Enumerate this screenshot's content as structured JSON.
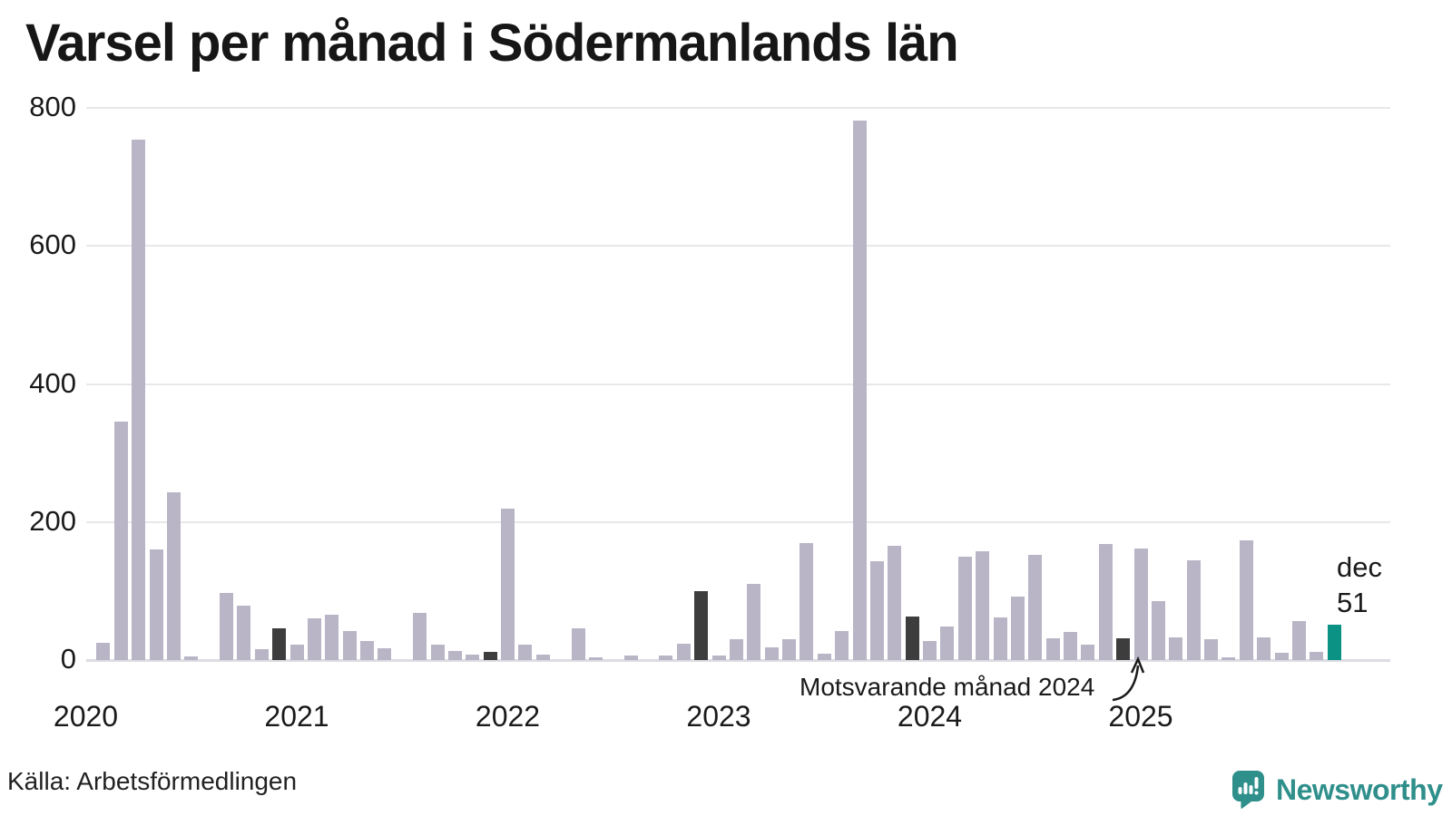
{
  "page": {
    "title": "Varsel per månad i Södermanlands län"
  },
  "footer": {
    "source": "Källa: Arbetsförmedlingen",
    "brand": "Newsworthy"
  },
  "annotation": {
    "text": "Motsvarande månad 2024"
  },
  "current_label": {
    "month": "dec",
    "value": "51"
  },
  "chart_data": {
    "type": "bar",
    "title": "Varsel per månad i Södermanlands län",
    "xlabel": "",
    "ylabel": "",
    "ylim": [
      0,
      800
    ],
    "yticks": [
      0,
      200,
      400,
      600,
      800
    ],
    "grid": true,
    "x_unit": "month",
    "x_start": "2020-01",
    "x_end": "2025-12",
    "year_labels": [
      "2020",
      "2021",
      "2022",
      "2023",
      "2024",
      "2025"
    ],
    "month_keys": [
      "jan",
      "feb",
      "mar",
      "apr",
      "maj",
      "jun",
      "jul",
      "aug",
      "sep",
      "okt",
      "nov",
      "dec"
    ],
    "series": [
      {
        "name": "Varsel per månad",
        "values": [
          0,
          25,
          345,
          754,
          160,
          243,
          5,
          0,
          97,
          79,
          16,
          46,
          22,
          60,
          66,
          42,
          27,
          17,
          0,
          68,
          22,
          13,
          8,
          12,
          220,
          22,
          8,
          0,
          46,
          4,
          0,
          6,
          0,
          7,
          23,
          100,
          7,
          30,
          110,
          19,
          30,
          170,
          9,
          42,
          782,
          143,
          166,
          63,
          27,
          49,
          150,
          157,
          62,
          92,
          152,
          32,
          41,
          22,
          168,
          32,
          162,
          85,
          33,
          144,
          30,
          4,
          173,
          33,
          10,
          57,
          12,
          51
        ]
      }
    ],
    "highlight_indices": [
      11,
      23,
      35,
      47,
      59
    ],
    "highlight_meaning": "december varje år (jämförelsemånad)",
    "annotation_text": "Motsvarande månad 2024",
    "annotation_target_index": 59,
    "current_index": 71,
    "current_point": {
      "month": "dec",
      "year": 2025,
      "value": 51
    },
    "colors": {
      "bar": "#b9b5c6",
      "highlight": "#3d3d3d",
      "current": "#0b9284",
      "gridline": "#e8e8ec",
      "brand": "#2f8f8b"
    },
    "legend": "none"
  }
}
